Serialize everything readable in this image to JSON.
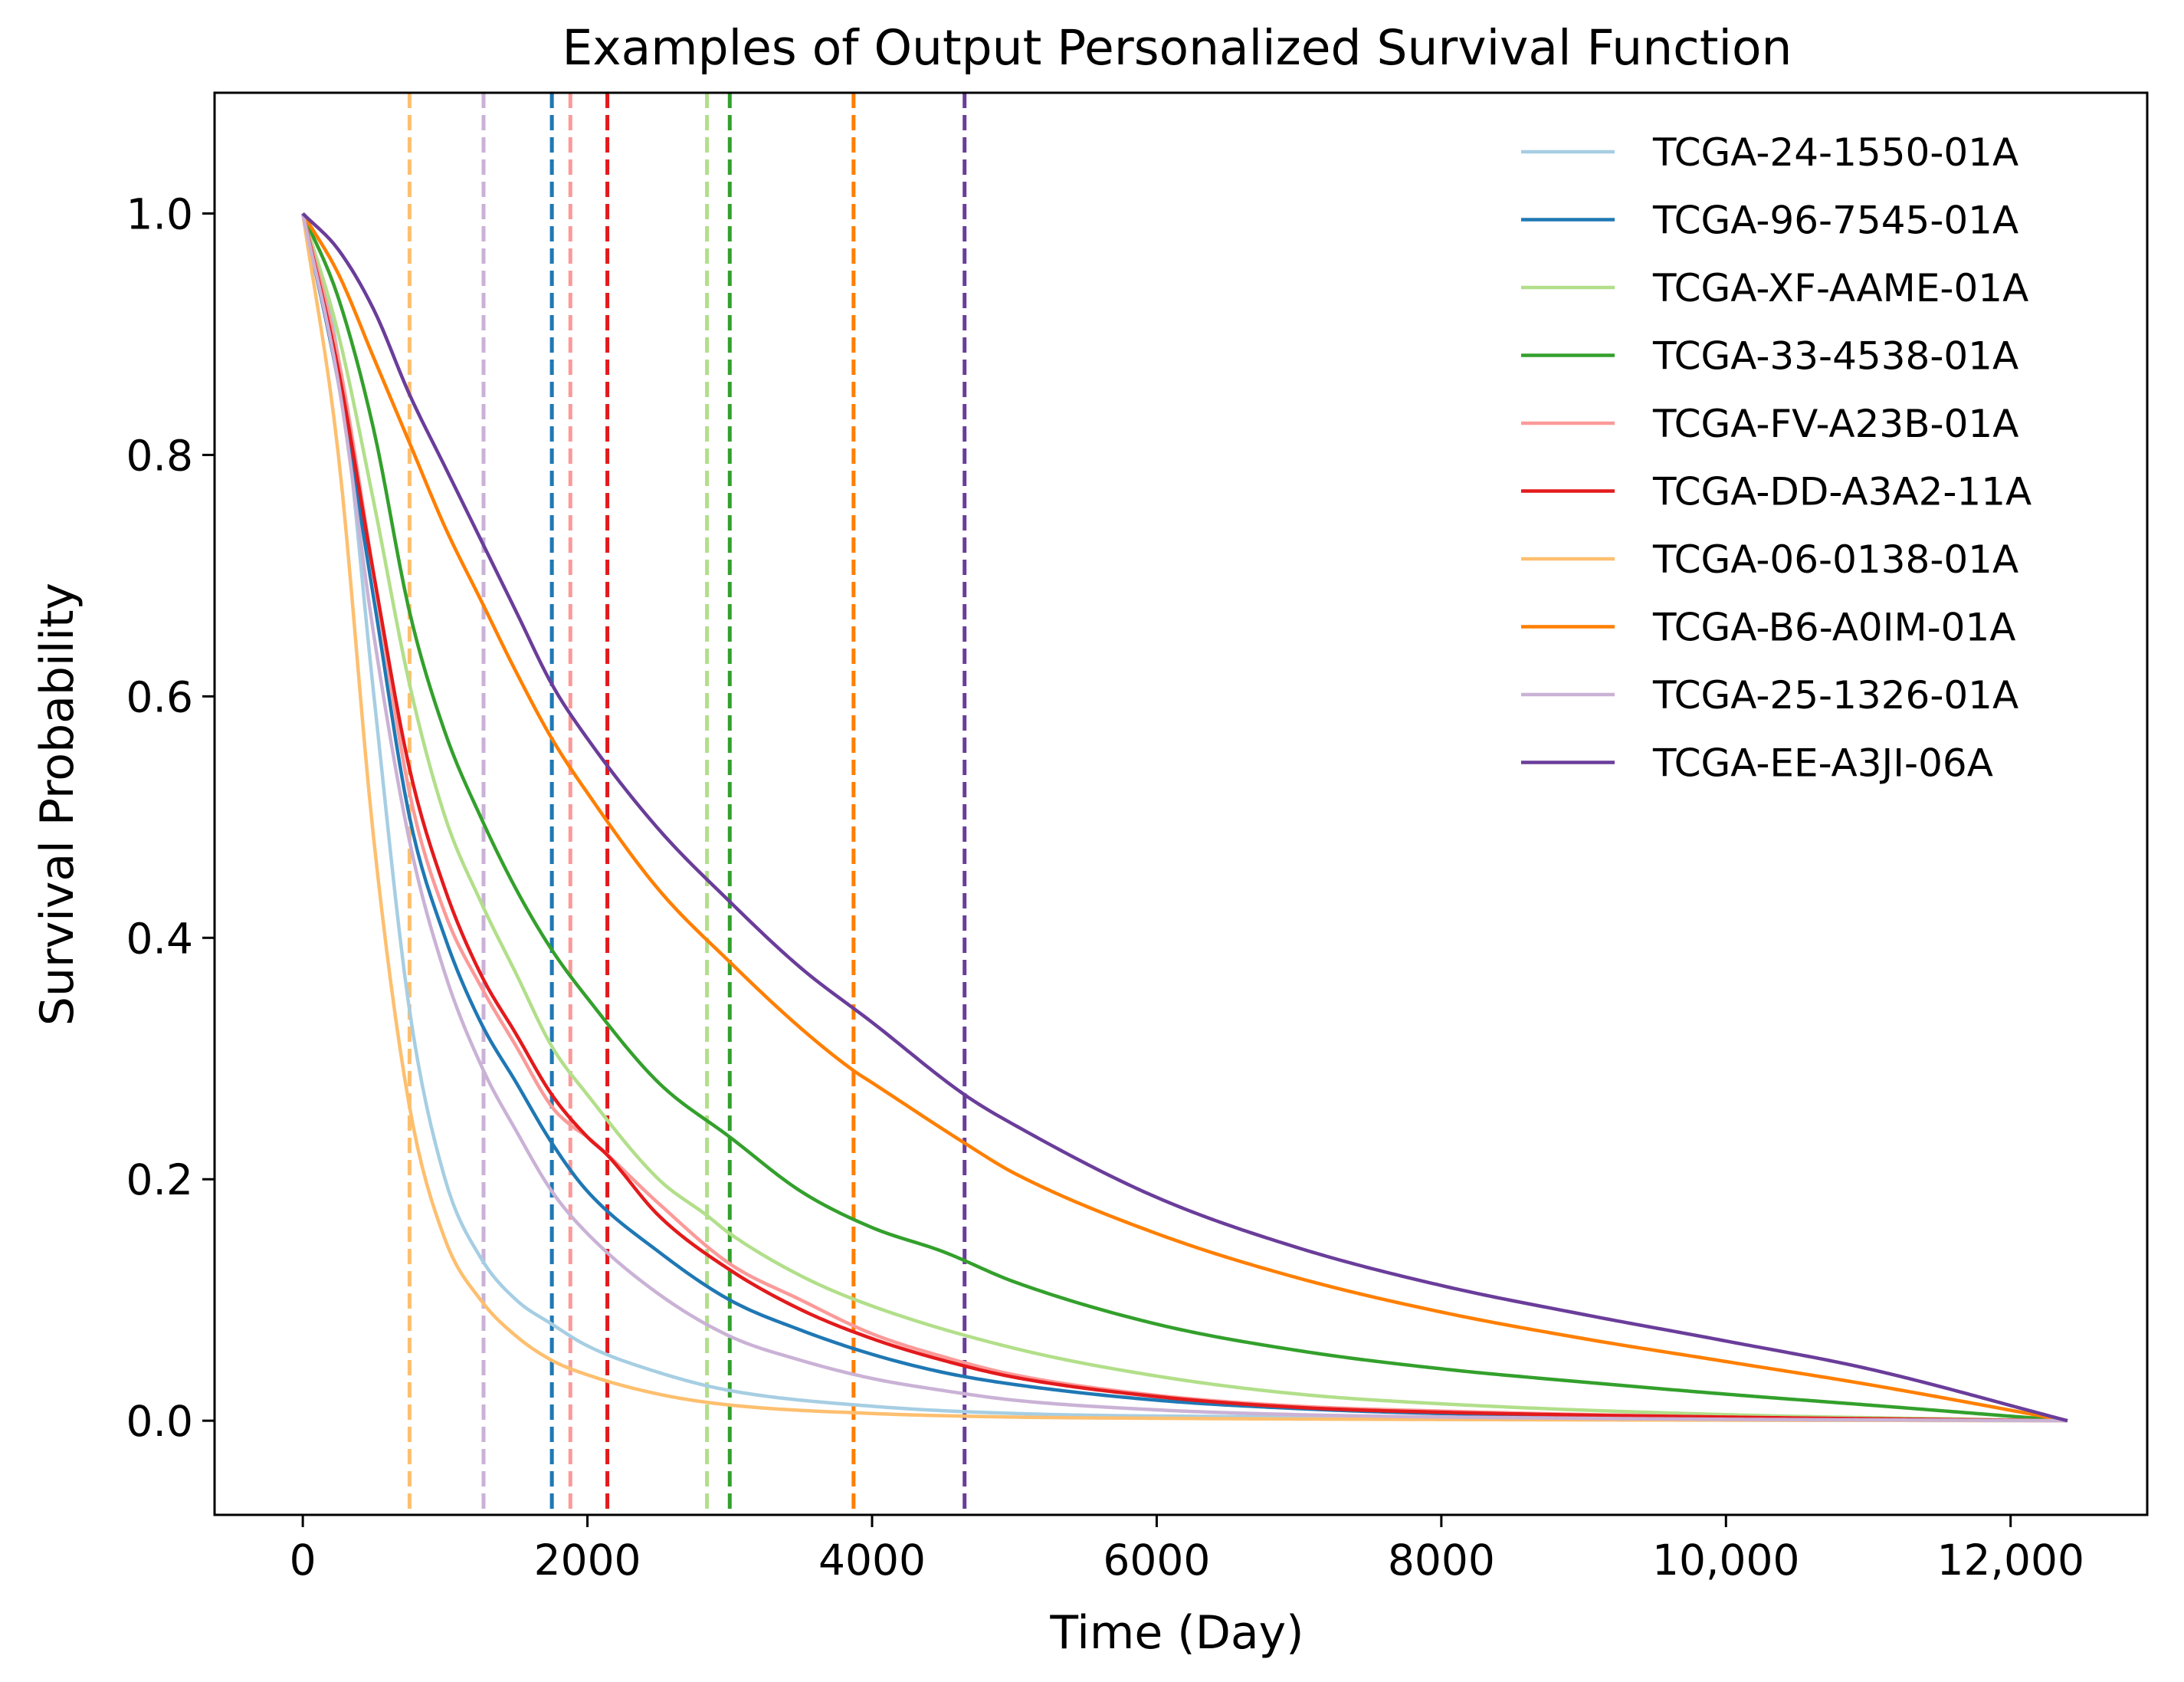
{
  "chart_data": {
    "type": "line",
    "title": "Examples of Output Personalized Survival Function",
    "xlabel": "Time (Day)",
    "ylabel": "Survival Probability",
    "xlim": [
      -620,
      12960
    ],
    "ylim": [
      -0.078,
      1.1
    ],
    "xticks": [
      {
        "value": 0,
        "label": "0"
      },
      {
        "value": 2000,
        "label": "2000"
      },
      {
        "value": 4000,
        "label": "4000"
      },
      {
        "value": 6000,
        "label": "6000"
      },
      {
        "value": 8000,
        "label": "8000"
      },
      {
        "value": 10000,
        "label": "10,000"
      },
      {
        "value": 12000,
        "label": "12,000"
      }
    ],
    "yticks": [
      {
        "value": 0.0,
        "label": "0.0"
      },
      {
        "value": 0.2,
        "label": "0.2"
      },
      {
        "value": 0.4,
        "label": "0.4"
      },
      {
        "value": 0.6,
        "label": "0.6"
      },
      {
        "value": 0.8,
        "label": "0.8"
      },
      {
        "value": 1.0,
        "label": "1.0"
      }
    ],
    "grid": false,
    "legend_position": "top-right",
    "end_time": 12400,
    "series": [
      {
        "name": "TCGA-24-1550-01A",
        "color": "#a6cee3",
        "event_time": 1750,
        "x": [
          0,
          250,
          500,
          750,
          1000,
          1250,
          1500,
          1750,
          2000,
          2500,
          3000,
          4000,
          5000,
          7000,
          9000,
          12400
        ],
        "y": [
          1.0,
          0.88,
          0.6,
          0.34,
          0.2,
          0.135,
          0.1,
          0.08,
          0.062,
          0.04,
          0.025,
          0.012,
          0.006,
          0.003,
          0.001,
          0.0
        ]
      },
      {
        "name": "TCGA-96-7545-01A",
        "color": "#1f78b4",
        "event_time": 1750,
        "x": [
          0,
          250,
          500,
          750,
          1000,
          1250,
          1500,
          1750,
          2000,
          2500,
          3000,
          3500,
          4000,
          4500,
          5000,
          6000,
          7000,
          8000,
          10000,
          12400
        ],
        "y": [
          1.0,
          0.86,
          0.68,
          0.5,
          0.4,
          0.33,
          0.28,
          0.23,
          0.19,
          0.14,
          0.1,
          0.075,
          0.055,
          0.04,
          0.03,
          0.017,
          0.01,
          0.006,
          0.003,
          0.0
        ]
      },
      {
        "name": "TCGA-XF-AAME-01A",
        "color": "#b2df8a",
        "event_time": 2840,
        "x": [
          0,
          250,
          500,
          750,
          1000,
          1250,
          1500,
          1750,
          2000,
          2500,
          2840,
          3000,
          3500,
          4000,
          5000,
          6000,
          7000,
          8000,
          10000,
          12400
        ],
        "y": [
          1.0,
          0.9,
          0.76,
          0.61,
          0.5,
          0.43,
          0.37,
          0.31,
          0.27,
          0.2,
          0.17,
          0.155,
          0.12,
          0.095,
          0.06,
          0.037,
          0.022,
          0.014,
          0.005,
          0.0
        ]
      },
      {
        "name": "TCGA-33-4538-01A",
        "color": "#33a02c",
        "event_time": 3000,
        "x": [
          0,
          250,
          500,
          750,
          1000,
          1250,
          1500,
          1750,
          2000,
          2500,
          3000,
          3500,
          4000,
          4500,
          5000,
          6000,
          7000,
          8000,
          9000,
          10000,
          11000,
          12400
        ],
        "y": [
          1.0,
          0.93,
          0.82,
          0.67,
          0.57,
          0.5,
          0.44,
          0.39,
          0.35,
          0.28,
          0.235,
          0.19,
          0.16,
          0.14,
          0.115,
          0.08,
          0.058,
          0.043,
          0.032,
          0.022,
          0.013,
          0.0
        ]
      },
      {
        "name": "TCGA-FV-A23B-01A",
        "color": "#fb9a99",
        "event_time": 1880,
        "x": [
          0,
          250,
          500,
          750,
          1000,
          1250,
          1500,
          1750,
          1880,
          2000,
          2500,
          3000,
          3500,
          4000,
          4500,
          5000,
          6000,
          7000,
          8000,
          10000,
          12400
        ],
        "y": [
          1.0,
          0.88,
          0.7,
          0.52,
          0.42,
          0.36,
          0.31,
          0.26,
          0.245,
          0.235,
          0.18,
          0.13,
          0.1,
          0.072,
          0.053,
          0.038,
          0.021,
          0.012,
          0.008,
          0.003,
          0.0
        ]
      },
      {
        "name": "TCGA-DD-A3A2-11A",
        "color": "#e31a1c",
        "event_time": 2140,
        "x": [
          0,
          250,
          500,
          750,
          1000,
          1250,
          1500,
          1750,
          2000,
          2140,
          2500,
          3000,
          3500,
          4000,
          4500,
          5000,
          6000,
          7000,
          8000,
          10000,
          12400
        ],
        "y": [
          1.0,
          0.87,
          0.7,
          0.54,
          0.44,
          0.37,
          0.32,
          0.27,
          0.235,
          0.22,
          0.17,
          0.125,
          0.092,
          0.068,
          0.05,
          0.036,
          0.02,
          0.011,
          0.007,
          0.003,
          0.0
        ]
      },
      {
        "name": "TCGA-06-0138-01A",
        "color": "#fdbf6f",
        "event_time": 750,
        "x": [
          0,
          250,
          500,
          750,
          1000,
          1250,
          1500,
          1750,
          2000,
          2500,
          3000,
          4000,
          5000,
          6000,
          8000,
          12400
        ],
        "y": [
          1.0,
          0.8,
          0.48,
          0.26,
          0.15,
          0.1,
          0.07,
          0.05,
          0.038,
          0.022,
          0.013,
          0.006,
          0.003,
          0.002,
          0.001,
          0.0
        ]
      },
      {
        "name": "TCGA-B6-A0IM-01A",
        "color": "#ff7f00",
        "event_time": 3870,
        "x": [
          0,
          250,
          500,
          750,
          1000,
          1250,
          1500,
          1750,
          2000,
          2500,
          3000,
          3500,
          3870,
          4000,
          4650,
          5000,
          6000,
          7000,
          8000,
          9000,
          10000,
          11000,
          12400
        ],
        "y": [
          1.0,
          0.95,
          0.88,
          0.81,
          0.74,
          0.68,
          0.62,
          0.565,
          0.52,
          0.44,
          0.38,
          0.325,
          0.29,
          0.28,
          0.23,
          0.205,
          0.155,
          0.118,
          0.09,
          0.068,
          0.049,
          0.03,
          0.0
        ]
      },
      {
        "name": "TCGA-25-1326-01A",
        "color": "#cab2d6",
        "event_time": 1270,
        "x": [
          0,
          250,
          500,
          750,
          1000,
          1270,
          1500,
          1750,
          2000,
          2500,
          3000,
          3500,
          4000,
          4500,
          5000,
          6000,
          7000,
          9000,
          12400
        ],
        "y": [
          1.0,
          0.86,
          0.65,
          0.48,
          0.37,
          0.29,
          0.24,
          0.19,
          0.155,
          0.105,
          0.07,
          0.05,
          0.035,
          0.025,
          0.017,
          0.009,
          0.005,
          0.002,
          0.0
        ]
      },
      {
        "name": "TCGA-EE-A3JI-06A",
        "color": "#6a3d9a",
        "event_time": 4650,
        "x": [
          0,
          250,
          500,
          750,
          1000,
          1250,
          1500,
          1750,
          2000,
          2500,
          3000,
          3500,
          4000,
          4650,
          5000,
          6000,
          7000,
          8000,
          9000,
          10000,
          11000,
          12400
        ],
        "y": [
          1.0,
          0.97,
          0.92,
          0.85,
          0.79,
          0.73,
          0.67,
          0.61,
          0.565,
          0.49,
          0.43,
          0.375,
          0.33,
          0.27,
          0.245,
          0.185,
          0.143,
          0.112,
          0.088,
          0.066,
          0.043,
          0.0
        ]
      }
    ]
  }
}
